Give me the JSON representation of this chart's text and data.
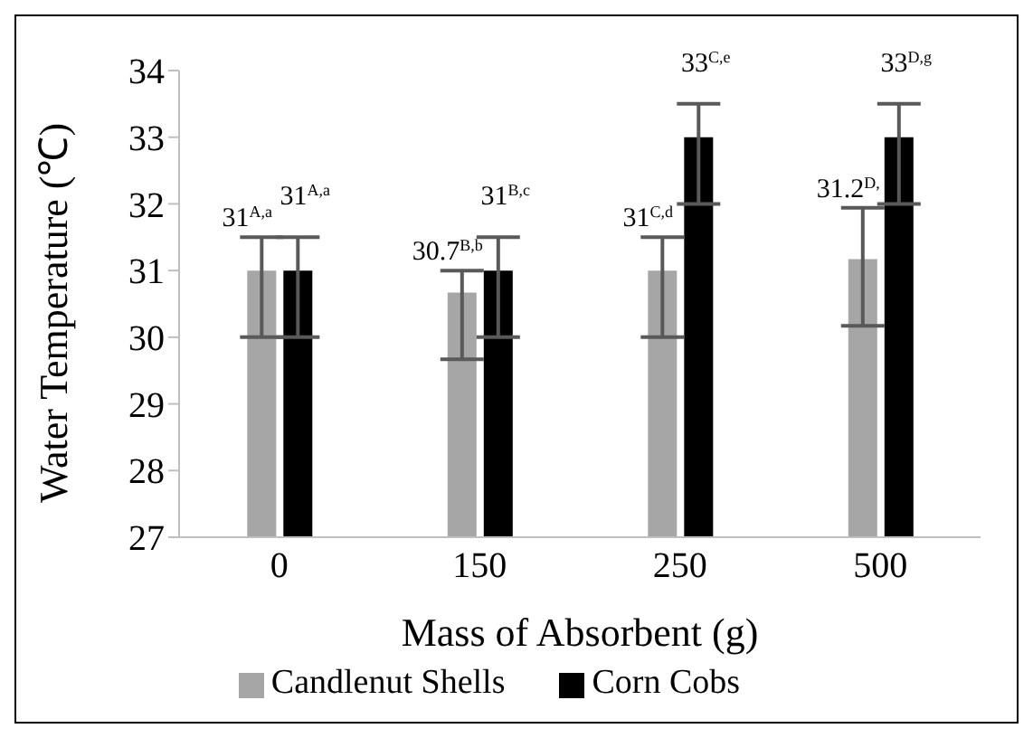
{
  "chart_data": {
    "type": "bar",
    "xlabel": "Mass of Absorbent (g)",
    "ylabel": "Water Temperature (℃)",
    "categories": [
      "0",
      "150",
      "250",
      "500"
    ],
    "ylim": [
      27,
      34
    ],
    "yticks": [
      27,
      28,
      29,
      30,
      31,
      32,
      33,
      34
    ],
    "grid": false,
    "legend": "bottom",
    "series": [
      {
        "name": "Candlenut Shells",
        "color": "#a6a6a6",
        "values": [
          31,
          30.67,
          31,
          31.17
        ],
        "errors": [
          [
            30,
            31.5
          ],
          [
            29.67,
            31
          ],
          [
            30,
            31.5
          ],
          [
            30.17,
            31.94
          ]
        ],
        "value_labels": [
          "31$^{A,a}$",
          "30.7$^{B,b}$",
          "31$^{C,d}$",
          "31.2$^{D,}$"
        ]
      },
      {
        "name": "Corn Cobs",
        "color": "#000000",
        "values": [
          31,
          31,
          33,
          33
        ],
        "errors": [
          [
            30,
            31.5
          ],
          [
            30,
            31.5
          ],
          [
            32,
            33.5
          ],
          [
            32,
            33.5
          ]
        ],
        "value_labels": [
          "31$^{A,a}$",
          "31$^{B,c}$",
          "33$^{C,e}$",
          "33$^{D,g}$"
        ]
      }
    ]
  }
}
